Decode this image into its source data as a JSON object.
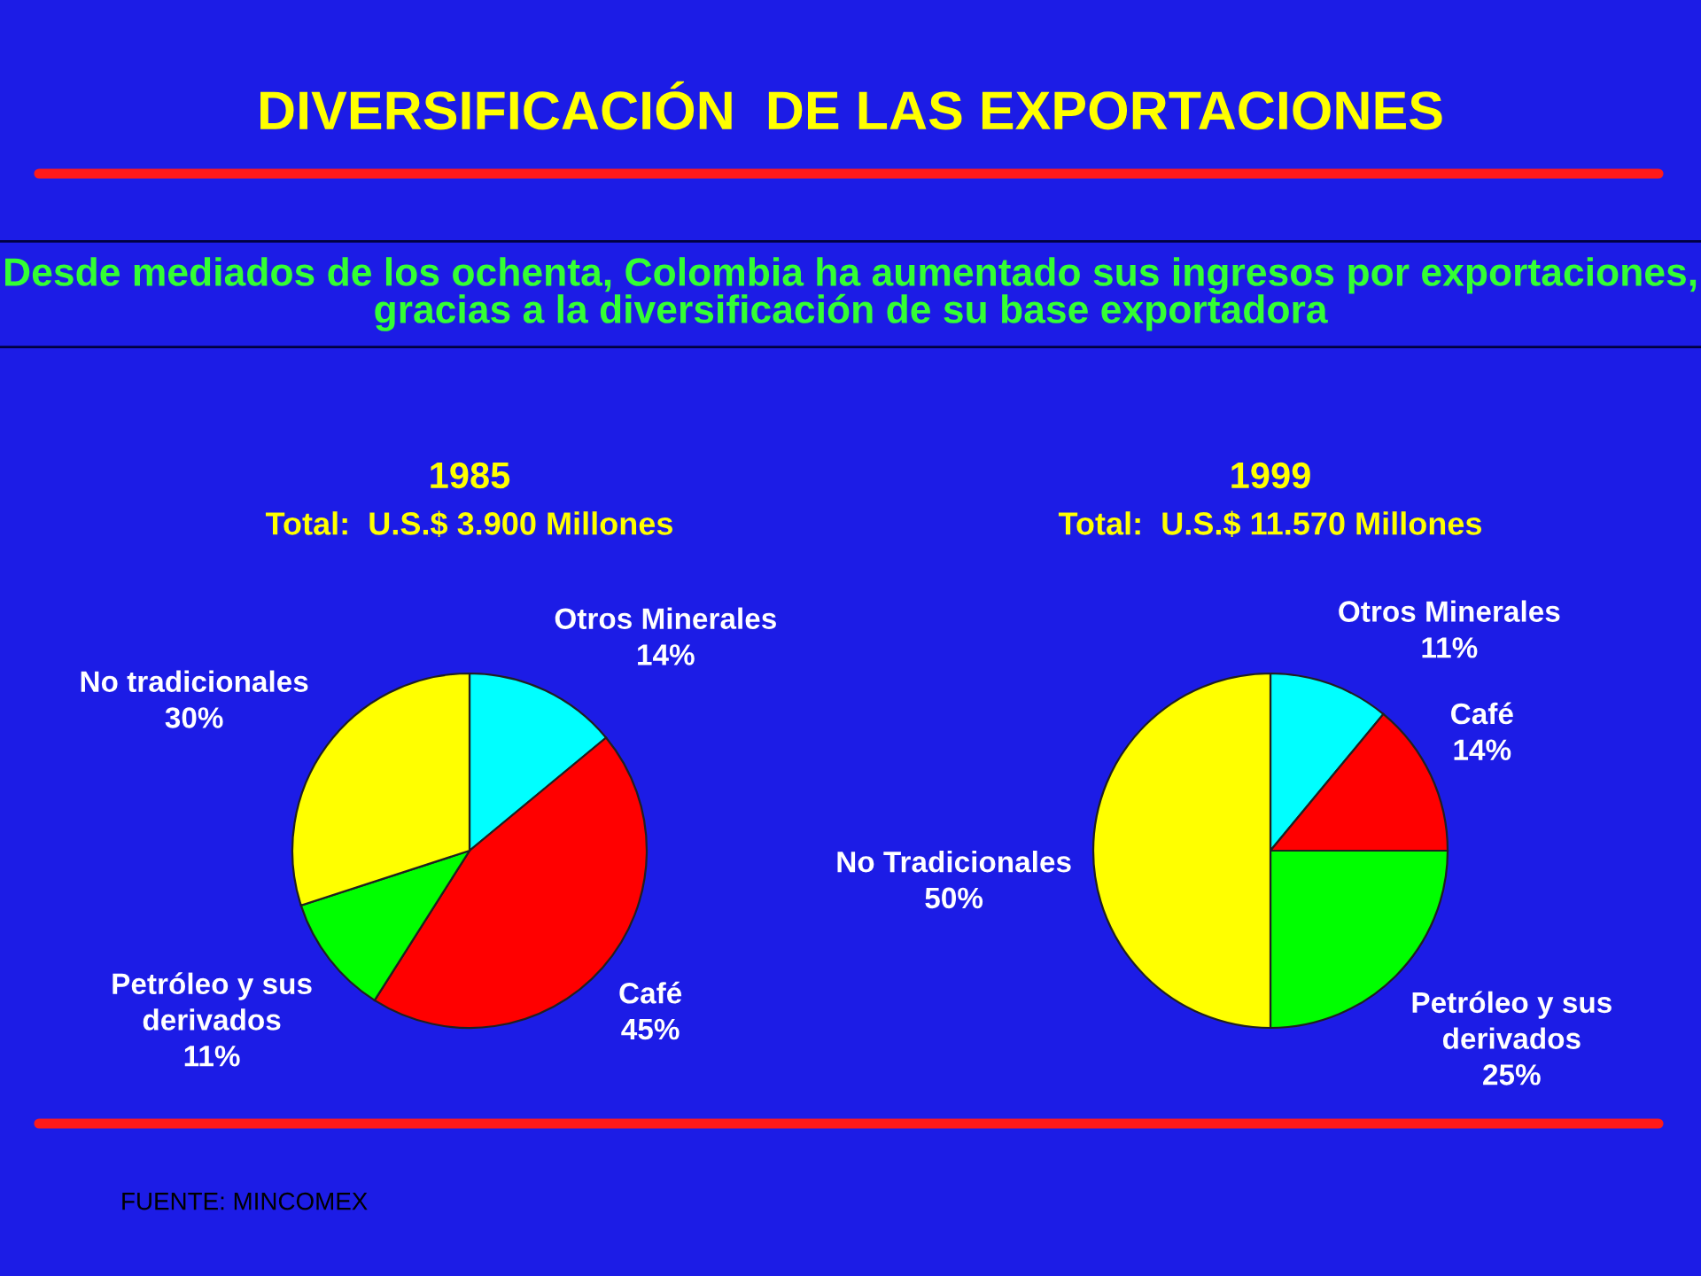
{
  "chart_data": [
    {
      "type": "pie",
      "title": "1985",
      "subtitle": "Total:  U.S.$ 3.900 Millones",
      "categories": [
        "Otros Minerales",
        "Café",
        "Petróleo y sus derivados",
        "No tradicionales"
      ],
      "values": [
        14,
        45,
        11,
        30
      ],
      "colors": [
        "#00ffff",
        "#ff0000",
        "#00ff00",
        "#ffff00"
      ],
      "value_labels": [
        "14%",
        "45%",
        "11%",
        "30%"
      ],
      "annotations": [
        "DIVERSIFICACIÓN  DE LAS EXPORTACIONES",
        "Desde mediados de los ochenta, Colombia ha aumentado sus ingresos por exportaciones, gracias a la diversificación de su base exportadora",
        "FUENTE: MINCOMEX"
      ]
    },
    {
      "type": "pie",
      "title": "1999",
      "subtitle": "Total:  U.S.$ 11.570 Millones",
      "categories": [
        "Otros Minerales",
        "Café",
        "Petróleo y sus derivados",
        "No Tradicionales"
      ],
      "values": [
        11,
        14,
        25,
        50
      ],
      "colors": [
        "#00ffff",
        "#ff0000",
        "#00ff00",
        "#ffff00"
      ],
      "value_labels": [
        "11%",
        "14%",
        "25%",
        "50%"
      ]
    }
  ]
}
